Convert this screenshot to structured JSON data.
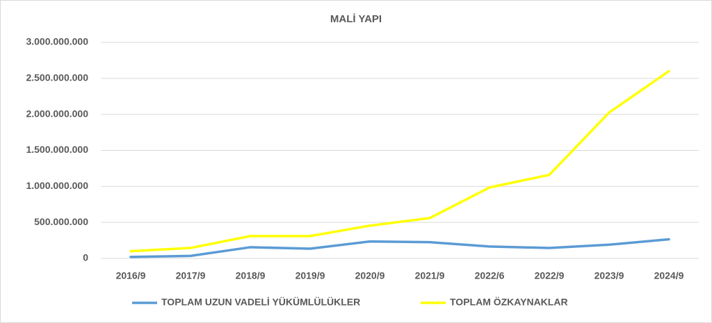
{
  "chart_data": {
    "type": "line",
    "title": "MALİ YAPI",
    "categories": [
      "2016/9",
      "2017/9",
      "2018/9",
      "2019/9",
      "2020/9",
      "2021/9",
      "2022/6",
      "2022/9",
      "2023/9",
      "2024/9"
    ],
    "series": [
      {
        "name": "TOPLAM UZUN VADELİ YÜKÜMLÜLÜKLER",
        "color": "#5b9bd5",
        "values": [
          20000000,
          35000000,
          155000000,
          135000000,
          235000000,
          225000000,
          165000000,
          145000000,
          190000000,
          265000000
        ]
      },
      {
        "name": "TOPLAM ÖZKAYNAKLAR",
        "color": "#ffff00",
        "values": [
          100000000,
          145000000,
          310000000,
          310000000,
          455000000,
          560000000,
          985000000,
          1160000000,
          2025000000,
          2600000000
        ]
      }
    ],
    "ylim": [
      0,
      3000000000
    ],
    "yticks": [
      0,
      {
        "value": 500000000,
        "label": "500.000.000"
      },
      {
        "value": 1000000000,
        "label": "1.000.000.000"
      },
      {
        "value": 1500000000,
        "label": "1.500.000.000"
      },
      {
        "value": 2000000000,
        "label": "2.000.000.000"
      },
      {
        "value": 2500000000,
        "label": "2.500.000.000"
      },
      {
        "value": 3000000000,
        "label": "3.000.000.000"
      }
    ],
    "grid": true,
    "legend": "bottom"
  }
}
